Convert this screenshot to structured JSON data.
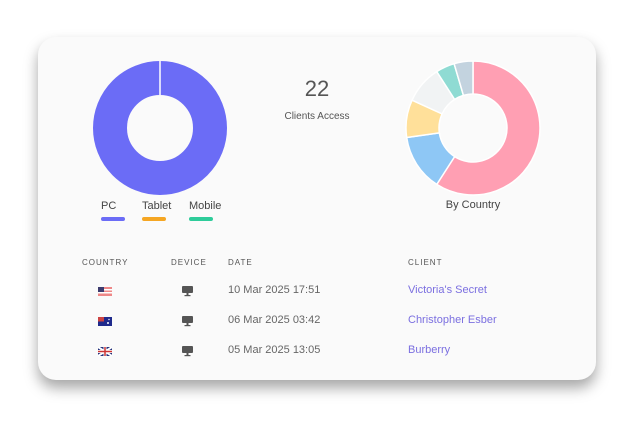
{
  "device_chart": {
    "type": "pie",
    "labels": [
      "PC",
      "Tablet",
      "Mobile"
    ],
    "values": [
      22,
      0,
      0
    ],
    "colors": [
      "#6b6cf6",
      "#f5a623",
      "#2ecc9a"
    ]
  },
  "center": {
    "count": "22",
    "label": "Clients Access"
  },
  "chart_data": {
    "type": "pie",
    "title": "By Country",
    "values": [
      13,
      3,
      2,
      2,
      1,
      1
    ],
    "colors": [
      "#ff9fb3",
      "#8ec7f5",
      "#ffe09a",
      "#f1f3f4",
      "#8fdbd3",
      "#c3d3df"
    ]
  },
  "table": {
    "headers": [
      "COUNTRY",
      "DEVICE",
      "DATE",
      "CLIENT"
    ],
    "rows": [
      {
        "country": "us",
        "device": "desktop-icon",
        "date": "10 Mar 2025 17:51",
        "client": "Victoria's Secret"
      },
      {
        "country": "au",
        "device": "desktop-icon",
        "date": "06 Mar 2025 03:42",
        "client": "Christopher Esber"
      },
      {
        "country": "gb",
        "device": "desktop-icon",
        "date": "05 Mar 2025 13:05",
        "client": "Burberry"
      }
    ]
  }
}
